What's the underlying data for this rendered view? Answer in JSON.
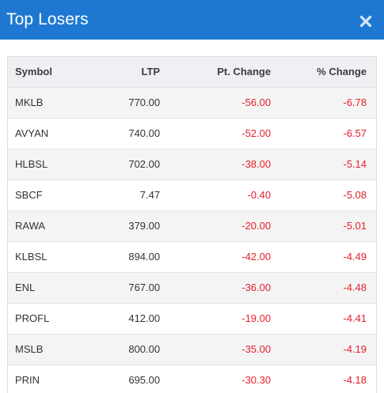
{
  "header": {
    "title": "Top Losers",
    "close_symbol": "×"
  },
  "table": {
    "columns": [
      "Symbol",
      "LTP",
      "Pt. Change",
      "% Change"
    ],
    "rows": [
      {
        "symbol": "MKLB",
        "ltp": "770.00",
        "pt_change": "-56.00",
        "pct_change": "-6.78"
      },
      {
        "symbol": "AVYAN",
        "ltp": "740.00",
        "pt_change": "-52.00",
        "pct_change": "-6.57"
      },
      {
        "symbol": "HLBSL",
        "ltp": "702.00",
        "pt_change": "-38.00",
        "pct_change": "-5.14"
      },
      {
        "symbol": "SBCF",
        "ltp": "7.47",
        "pt_change": "-0.40",
        "pct_change": "-5.08"
      },
      {
        "symbol": "RAWA",
        "ltp": "379.00",
        "pt_change": "-20.00",
        "pct_change": "-5.01"
      },
      {
        "symbol": "KLBSL",
        "ltp": "894.00",
        "pt_change": "-42.00",
        "pct_change": "-4.49"
      },
      {
        "symbol": "ENL",
        "ltp": "767.00",
        "pt_change": "-36.00",
        "pct_change": "-4.48"
      },
      {
        "symbol": "PROFL",
        "ltp": "412.00",
        "pt_change": "-19.00",
        "pct_change": "-4.41"
      },
      {
        "symbol": "MSLB",
        "ltp": "800.00",
        "pt_change": "-35.00",
        "pct_change": "-4.19"
      },
      {
        "symbol": "PRIN",
        "ltp": "695.00",
        "pt_change": "-30.30",
        "pct_change": "-4.18"
      }
    ]
  },
  "colors": {
    "header_bg": "#1e78d2",
    "negative": "#e5202e"
  }
}
